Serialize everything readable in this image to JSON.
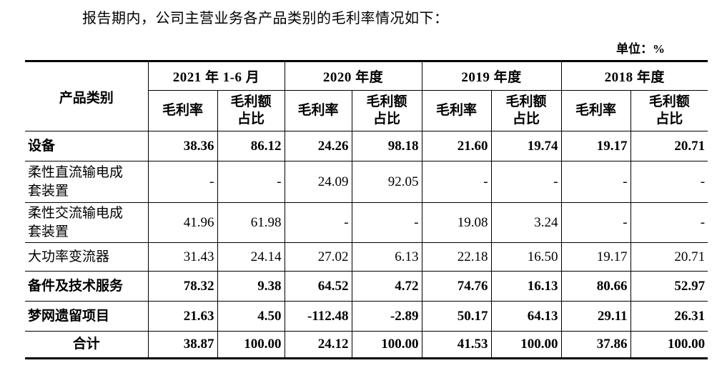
{
  "page": {
    "intro": "报告期内，公司主营业务各产品类别的毛利率情况如下：",
    "unit_label": "单位：%"
  },
  "table": {
    "product_header": "产品类别",
    "period_groups": [
      {
        "label": "2021 年 1-6 月"
      },
      {
        "label": "2020 年度"
      },
      {
        "label": "2019 年度"
      },
      {
        "label": "2018 年度"
      }
    ],
    "sub_headers": {
      "margin": "毛利率",
      "share": "毛利额\n占比"
    },
    "rows": [
      {
        "label": "设备",
        "bold": true,
        "total": false,
        "values": [
          "38.36",
          "86.12",
          "24.26",
          "98.18",
          "21.60",
          "19.74",
          "19.17",
          "20.71"
        ]
      },
      {
        "label": "柔性直流输电成\n套装置",
        "bold": false,
        "total": false,
        "values": [
          "-",
          "-",
          "24.09",
          "92.05",
          "-",
          "-",
          "-",
          "-"
        ]
      },
      {
        "label": "柔性交流输电成\n套装置",
        "bold": false,
        "total": false,
        "values": [
          "41.96",
          "61.98",
          "-",
          "-",
          "19.08",
          "3.24",
          "-",
          "-"
        ]
      },
      {
        "label": "大功率变流器",
        "bold": false,
        "total": false,
        "values": [
          "31.43",
          "24.14",
          "27.02",
          "6.13",
          "22.18",
          "16.50",
          "19.17",
          "20.71"
        ]
      },
      {
        "label": "备件及技术服务",
        "bold": true,
        "total": false,
        "values": [
          "78.32",
          "9.38",
          "64.52",
          "4.72",
          "74.76",
          "16.13",
          "80.66",
          "52.97"
        ]
      },
      {
        "label": "梦网遗留项目",
        "bold": true,
        "total": false,
        "values": [
          "21.63",
          "4.50",
          "-112.48",
          "-2.89",
          "50.17",
          "64.13",
          "29.11",
          "26.31"
        ]
      },
      {
        "label": "合计",
        "bold": true,
        "total": true,
        "values": [
          "38.87",
          "100.00",
          "24.12",
          "100.00",
          "41.53",
          "100.00",
          "37.86",
          "100.00"
        ]
      }
    ]
  },
  "colors": {
    "text": "#000000",
    "digit_text": "#0c0c2a",
    "border": "#000000",
    "background": "#ffffff"
  }
}
